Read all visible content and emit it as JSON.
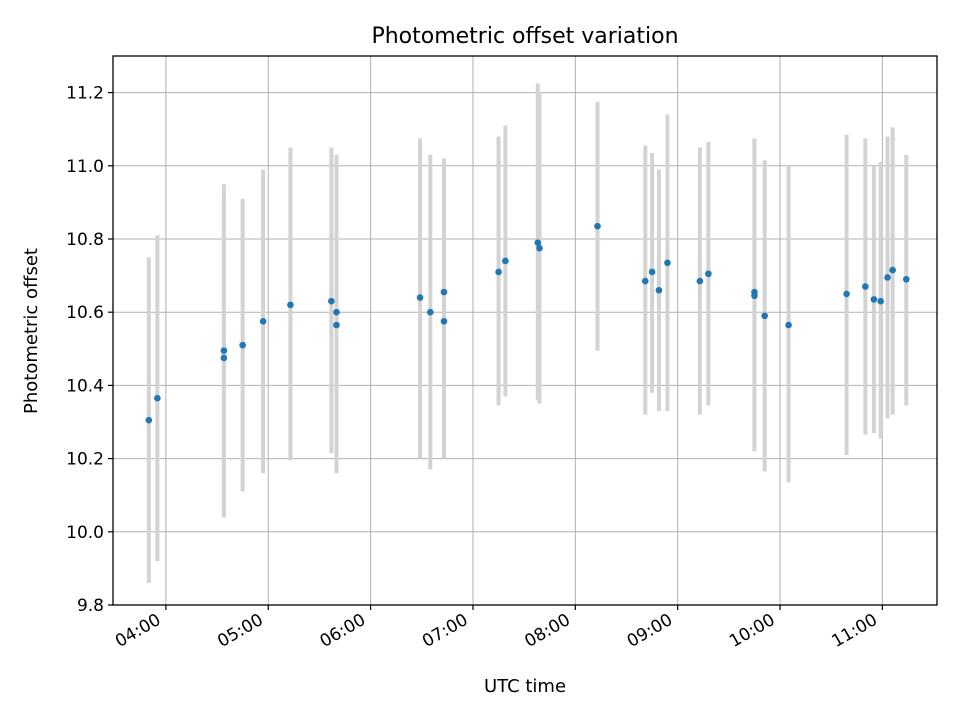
{
  "chart_data": {
    "type": "scatter",
    "title": "Photometric offset variation",
    "xlabel": "UTC time",
    "ylabel": "Photometric offset",
    "xlim": [
      "03:29",
      "11:32"
    ],
    "ylim": [
      9.8,
      11.3
    ],
    "x_ticks": [
      "04:00",
      "05:00",
      "06:00",
      "07:00",
      "08:00",
      "09:00",
      "10:00",
      "11:00"
    ],
    "y_ticks": [
      "9.8",
      "10.0",
      "10.2",
      "10.4",
      "10.6",
      "10.8",
      "11.0",
      "11.2"
    ],
    "grid": true,
    "colors": {
      "points": "#1f77b4",
      "errorbars": "#d3d3d3",
      "grid": "#b0b0b0"
    },
    "series": [
      {
        "points": [
          {
            "x": "03:50",
            "y": 10.305,
            "lo": 9.86,
            "hi": 10.75
          },
          {
            "x": "03:55",
            "y": 10.365,
            "lo": 9.92,
            "hi": 10.81
          },
          {
            "x": "04:34",
            "y": 10.495,
            "lo": 10.04,
            "hi": 10.95
          },
          {
            "x": "04:34",
            "y": 10.475,
            "lo": 10.04,
            "hi": 10.91
          },
          {
            "x": "04:45",
            "y": 10.51,
            "lo": 10.11,
            "hi": 10.91
          },
          {
            "x": "04:57",
            "y": 10.575,
            "lo": 10.16,
            "hi": 10.99
          },
          {
            "x": "05:13",
            "y": 10.62,
            "lo": 10.195,
            "hi": 11.05
          },
          {
            "x": "05:37",
            "y": 10.63,
            "lo": 10.215,
            "hi": 11.05
          },
          {
            "x": "05:40",
            "y": 10.6,
            "lo": 10.16,
            "hi": 11.03
          },
          {
            "x": "05:40",
            "y": 10.565,
            "lo": 10.17,
            "hi": 10.97
          },
          {
            "x": "06:29",
            "y": 10.64,
            "lo": 10.2,
            "hi": 11.075
          },
          {
            "x": "06:35",
            "y": 10.6,
            "lo": 10.17,
            "hi": 11.03
          },
          {
            "x": "06:43",
            "y": 10.655,
            "lo": 10.3,
            "hi": 11.02
          },
          {
            "x": "06:43",
            "y": 10.575,
            "lo": 10.2,
            "hi": 10.95
          },
          {
            "x": "07:15",
            "y": 10.71,
            "lo": 10.345,
            "hi": 11.08
          },
          {
            "x": "07:19",
            "y": 10.74,
            "lo": 10.37,
            "hi": 11.11
          },
          {
            "x": "07:38",
            "y": 10.79,
            "lo": 10.36,
            "hi": 11.225
          },
          {
            "x": "07:39",
            "y": 10.775,
            "lo": 10.35,
            "hi": 11.2
          },
          {
            "x": "08:13",
            "y": 10.835,
            "lo": 10.495,
            "hi": 11.175
          },
          {
            "x": "08:41",
            "y": 10.685,
            "lo": 10.32,
            "hi": 11.055
          },
          {
            "x": "08:45",
            "y": 10.71,
            "lo": 10.38,
            "hi": 11.035
          },
          {
            "x": "08:49",
            "y": 10.66,
            "lo": 10.33,
            "hi": 10.99
          },
          {
            "x": "08:54",
            "y": 10.735,
            "lo": 10.33,
            "hi": 11.14
          },
          {
            "x": "09:13",
            "y": 10.685,
            "lo": 10.32,
            "hi": 11.05
          },
          {
            "x": "09:18",
            "y": 10.705,
            "lo": 10.345,
            "hi": 11.065
          },
          {
            "x": "09:45",
            "y": 10.655,
            "lo": 10.22,
            "hi": 11.075
          },
          {
            "x": "09:45",
            "y": 10.645,
            "lo": 10.22,
            "hi": 11.07
          },
          {
            "x": "09:51",
            "y": 10.59,
            "lo": 10.165,
            "hi": 11.015
          },
          {
            "x": "10:05",
            "y": 10.565,
            "lo": 10.135,
            "hi": 11.0
          },
          {
            "x": "10:39",
            "y": 10.65,
            "lo": 10.21,
            "hi": 11.085
          },
          {
            "x": "10:50",
            "y": 10.67,
            "lo": 10.265,
            "hi": 11.075
          },
          {
            "x": "10:55",
            "y": 10.635,
            "lo": 10.27,
            "hi": 11.0
          },
          {
            "x": "10:59",
            "y": 10.63,
            "lo": 10.255,
            "hi": 11.01
          },
          {
            "x": "11:03",
            "y": 10.695,
            "lo": 10.31,
            "hi": 11.08
          },
          {
            "x": "11:06",
            "y": 10.715,
            "lo": 10.32,
            "hi": 11.105
          },
          {
            "x": "11:14",
            "y": 10.69,
            "lo": 10.345,
            "hi": 11.03
          }
        ]
      }
    ]
  }
}
